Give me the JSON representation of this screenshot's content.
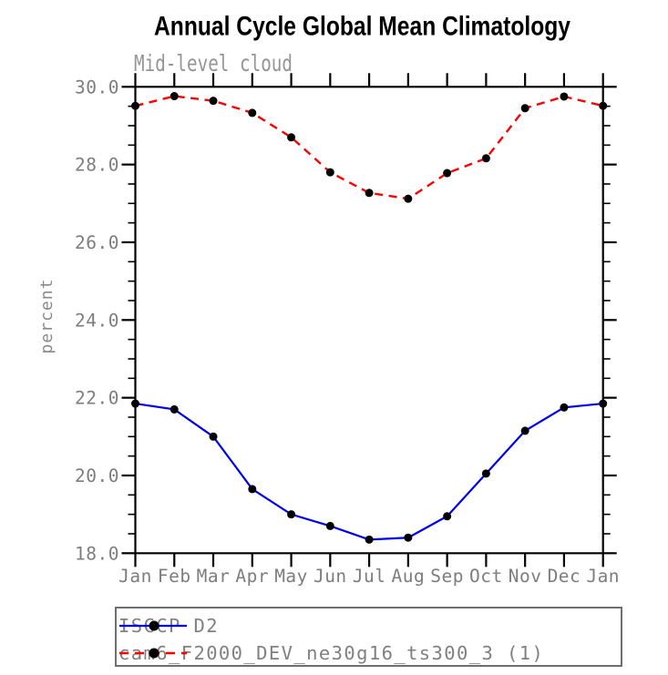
{
  "title": "Annual Cycle Global Mean Climatology",
  "chart_data": {
    "type": "line",
    "title": "Annual Cycle Global Mean Climatology",
    "subtitle": "Mid-level cloud",
    "xlabel": "",
    "ylabel": "percent",
    "categories": [
      "Jan",
      "Feb",
      "Mar",
      "Apr",
      "May",
      "Jun",
      "Jul",
      "Aug",
      "Sep",
      "Oct",
      "Nov",
      "Dec",
      "Jan"
    ],
    "ylim": [
      18.0,
      30.0
    ],
    "ytick_major": 2.0,
    "ytick_minor": 0.5,
    "ytick_labels": [
      "18.0",
      "20.0",
      "22.0",
      "24.0",
      "26.0",
      "28.0",
      "30.0"
    ],
    "grid": false,
    "legend_position": "below-left",
    "axis_color": "#000000",
    "label_color": "#7d7d7d",
    "series": [
      {
        "name": "ISCCP D2",
        "color": "#0000ee",
        "style": "solid",
        "marker": "black-circle",
        "values": [
          21.85,
          21.7,
          21.0,
          19.65,
          19.0,
          18.7,
          18.35,
          18.4,
          18.95,
          20.05,
          21.15,
          21.75,
          21.85
        ]
      },
      {
        "name": "cam6_F2000_DEV_ne30g16_ts300_3 (1)",
        "color": "#ff0000",
        "style": "dashed",
        "marker": "black-circle",
        "values": [
          29.51,
          29.76,
          29.64,
          29.33,
          28.7,
          27.8,
          27.27,
          27.12,
          27.78,
          28.16,
          29.45,
          29.75,
          29.51
        ]
      }
    ]
  }
}
